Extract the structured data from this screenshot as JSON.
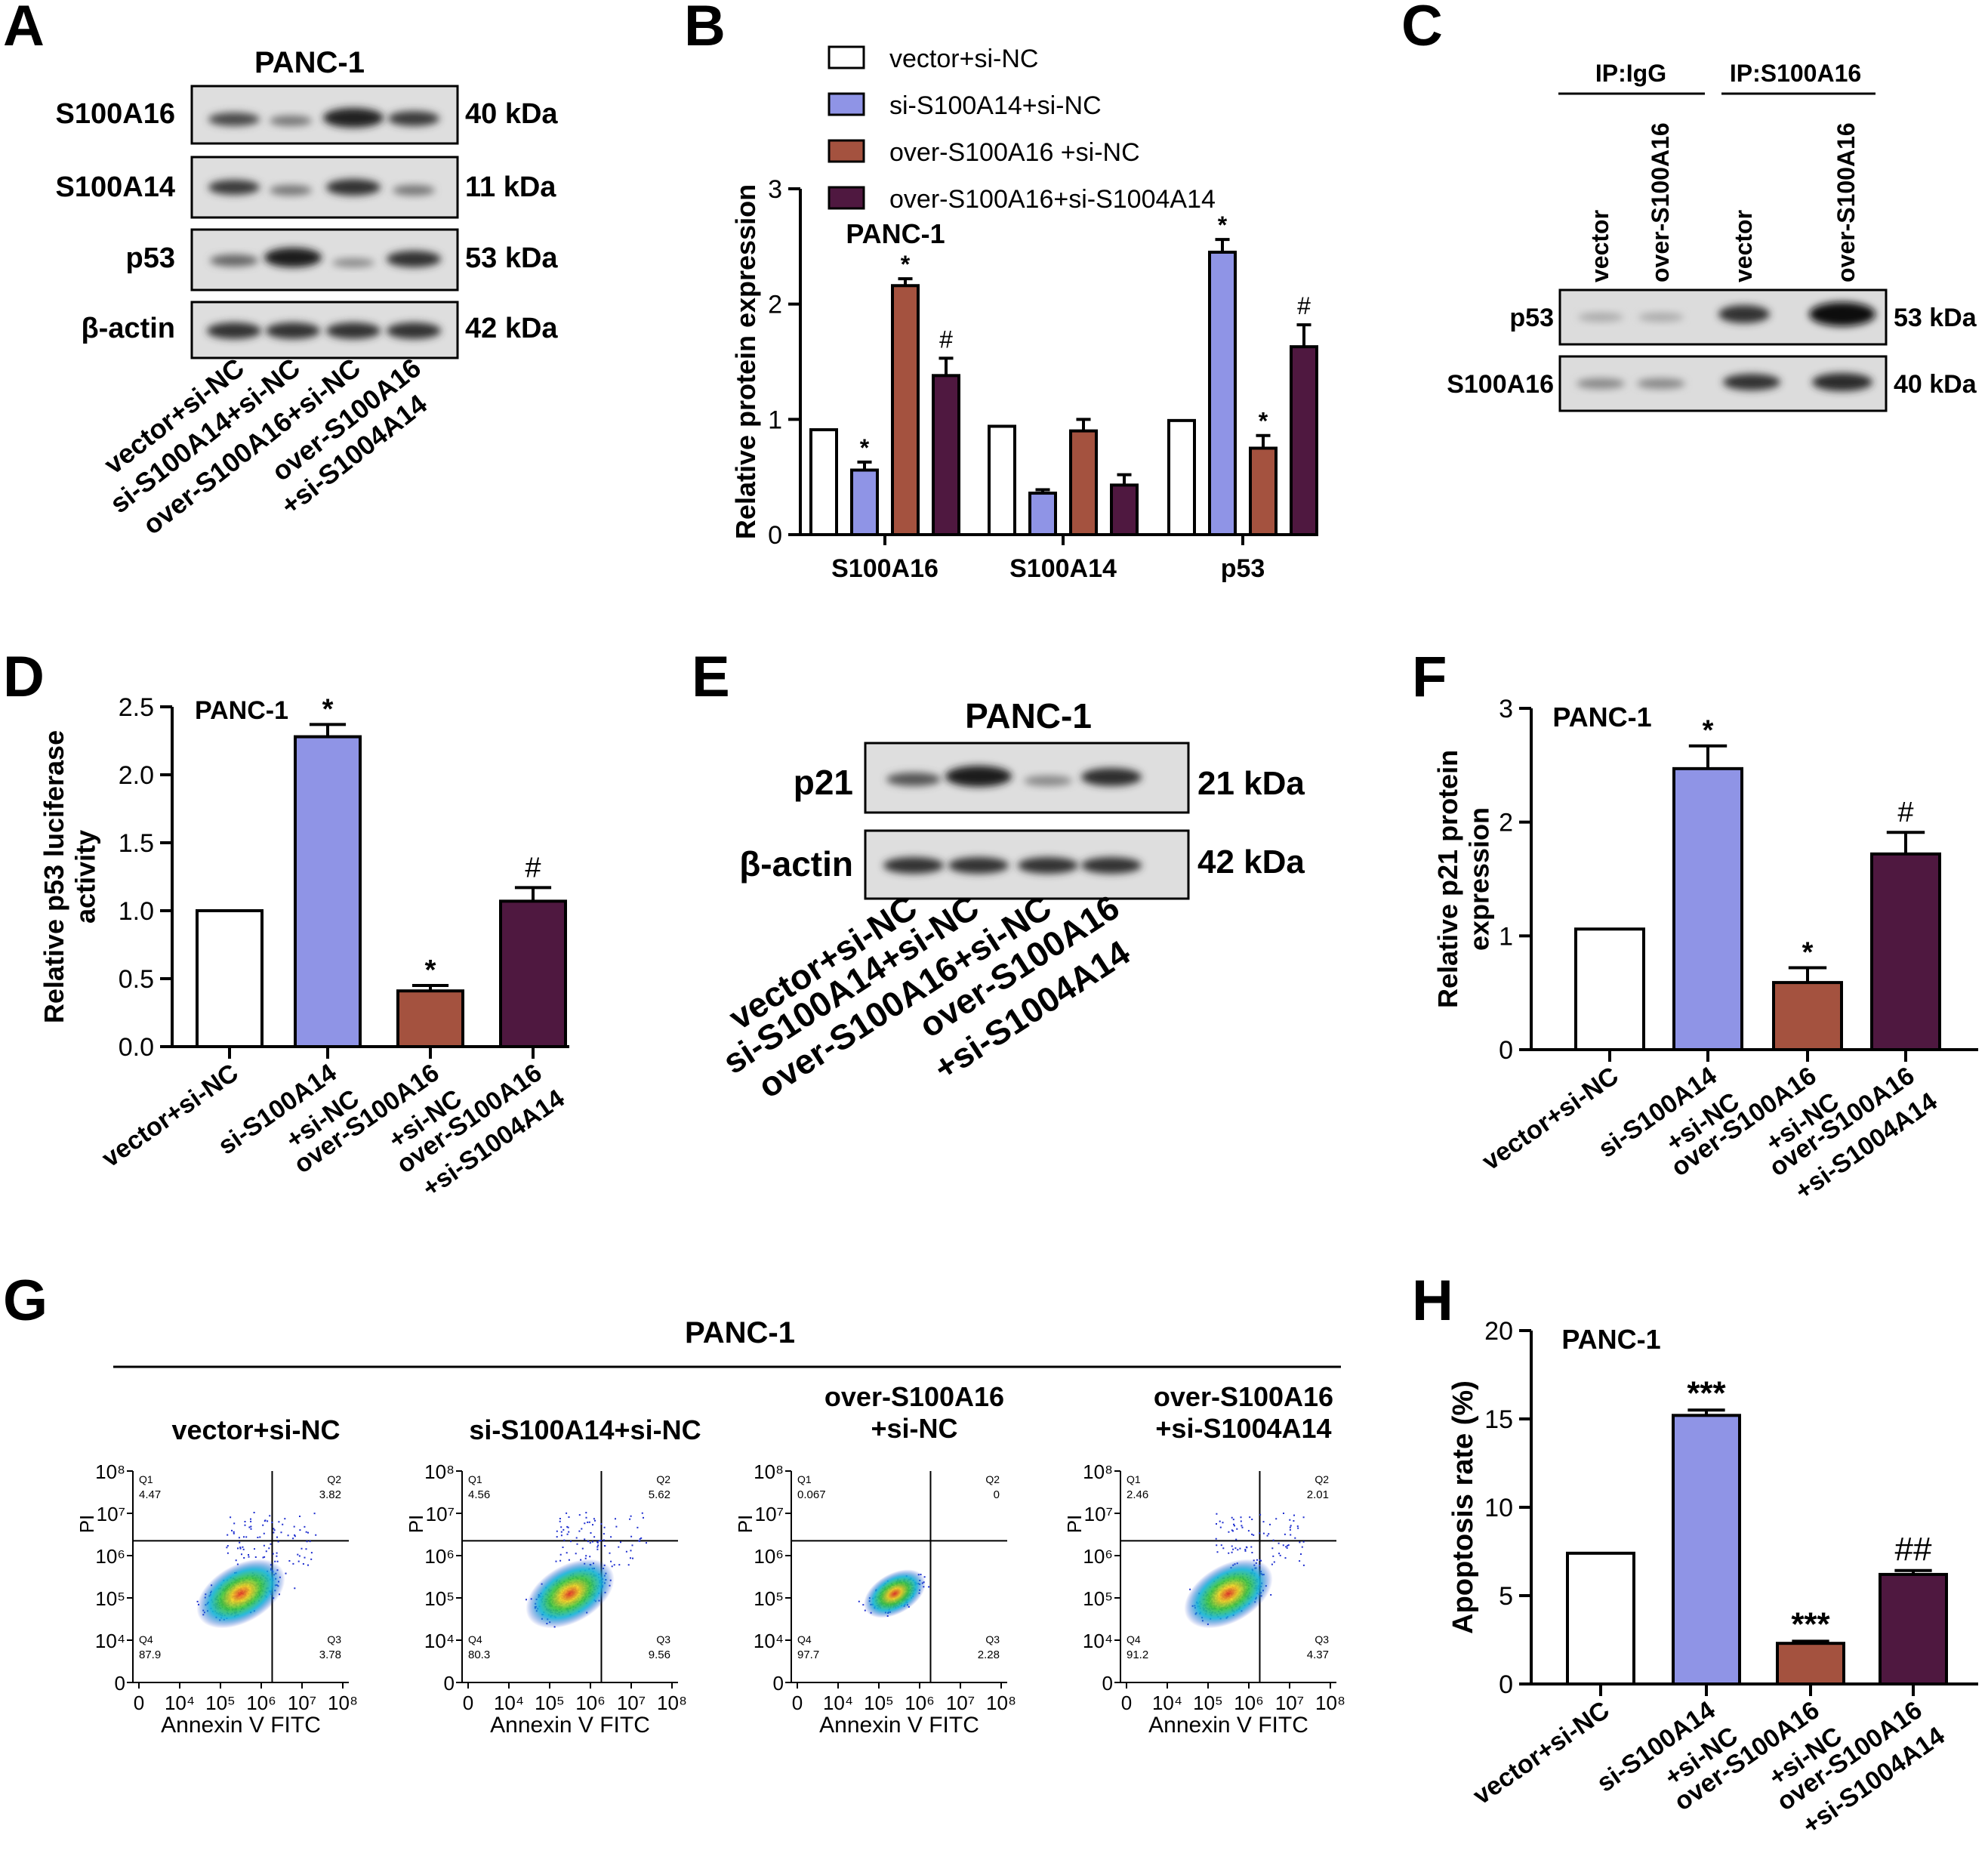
{
  "colors": {
    "vector_si_nc": "#ffffff",
    "si_s100a14": "#8f94e6",
    "over_s100a16": "#a4523f",
    "over_combo": "#4f1840",
    "axis": "#000000"
  },
  "panels": {
    "A": {
      "letter": "A",
      "cell_line": "PANC-1",
      "rows": [
        {
          "name": "S100A16",
          "kda": "40 kDa"
        },
        {
          "name": "S100A14",
          "kda": "11 kDa"
        },
        {
          "name": "p53",
          "kda": "53 kDa"
        },
        {
          "name": "β-actin",
          "kda": "42 kDa"
        }
      ],
      "lanes": [
        "vector+si-NC",
        "si-S100A14+si-NC",
        "over-S100A16+si-NC",
        "over-S100A16",
        "+si-S1004A14"
      ]
    },
    "B": {
      "letter": "B",
      "legend": [
        "vector+si-NC",
        "si-S100A14+si-NC",
        "over-S100A16 +si-NC",
        "over-S100A16+si-S1004A14"
      ]
    },
    "C": {
      "letter": "C",
      "groups": [
        "IP:IgG",
        "IP:S100A16"
      ],
      "lanes": [
        "vector",
        "over-S100A16",
        "vector",
        "over-S100A16"
      ],
      "rows": [
        {
          "name": "p53",
          "kda": "53 kDa"
        },
        {
          "name": "S100A16",
          "kda": "40 kDa"
        }
      ]
    },
    "D": {
      "letter": "D"
    },
    "E": {
      "letter": "E",
      "cell_line": "PANC-1",
      "rows": [
        {
          "name": "p21",
          "kda": "21 kDa"
        },
        {
          "name": "β-actin",
          "kda": "42 kDa"
        }
      ],
      "lanes": [
        "vector+si-NC",
        "si-S100A14+si-NC",
        "over-S100A16+si-NC",
        "over-S100A16",
        "+si-S1004A14"
      ]
    },
    "F": {
      "letter": "F"
    },
    "G": {
      "letter": "G",
      "cell_line": "PANC-1",
      "plots": [
        {
          "title": [
            "vector+si-NC"
          ],
          "q": [
            "Q1",
            "Q2",
            "Q3",
            "Q4"
          ],
          "qv": [
            "4.47",
            "3.82",
            "3.78",
            "87.9"
          ]
        },
        {
          "title": [
            "si-S100A14+si-NC"
          ],
          "q": [
            "Q1",
            "Q2",
            "Q3",
            "Q4"
          ],
          "qv": [
            "4.56",
            "5.62",
            "9.56",
            "80.3"
          ]
        },
        {
          "title": [
            "over-S100A16",
            "+si-NC"
          ],
          "q": [
            "Q1",
            "Q2",
            "Q3",
            "Q4"
          ],
          "qv": [
            "0.067",
            "0",
            "2.28",
            "97.7"
          ]
        },
        {
          "title": [
            "over-S100A16",
            "+si-S1004A14"
          ],
          "q": [
            "Q1",
            "Q2",
            "Q3",
            "Q4"
          ],
          "qv": [
            "2.46",
            "2.01",
            "4.37",
            "91.2"
          ]
        }
      ],
      "ylabel": "PI",
      "xlabel": "Annexin V FITC",
      "y_ticks": [
        "10⁸",
        "10⁷",
        "10⁶",
        "10⁵",
        "10⁴",
        "0"
      ],
      "x_ticks": [
        "0",
        "10⁴",
        "10⁵",
        "10⁶",
        "10⁷",
        "10⁸"
      ]
    },
    "H": {
      "letter": "H"
    }
  },
  "chart_data": [
    {
      "panel": "B",
      "type": "bar",
      "title": "PANC-1",
      "ylabel": "Relative protein expression",
      "xlabel": "",
      "ylim": [
        0,
        3
      ],
      "yticks": [
        "0",
        "1",
        "2",
        "3"
      ],
      "categories": [
        "S100A16",
        "S100A14",
        "p53"
      ],
      "series": [
        {
          "name": "vector+si-NC",
          "values": [
            0.91,
            0.94,
            0.99
          ],
          "errors": [
            0,
            0,
            0
          ],
          "marks": [
            "",
            "",
            ""
          ]
        },
        {
          "name": "si-S100A14+si-NC",
          "values": [
            0.56,
            0.36,
            2.45
          ],
          "errors": [
            0.07,
            0.03,
            0.11
          ],
          "marks": [
            "*",
            "",
            "*"
          ]
        },
        {
          "name": "over-S100A16 +si-NC",
          "values": [
            2.16,
            0.9,
            0.75
          ],
          "errors": [
            0.06,
            0.1,
            0.11
          ],
          "marks": [
            "*",
            "",
            "*"
          ]
        },
        {
          "name": "over-S100A16+si-S1004A14",
          "values": [
            1.38,
            0.43,
            1.63
          ],
          "errors": [
            0.15,
            0.09,
            0.19
          ],
          "marks": [
            "#",
            "",
            "#"
          ]
        }
      ]
    },
    {
      "panel": "D",
      "type": "bar",
      "title": "PANC-1",
      "ylabel": "Relative p53 luciferase activity",
      "ylim": [
        0,
        2.5
      ],
      "yticks": [
        "0.0",
        "0.5",
        "1.0",
        "1.5",
        "2.0",
        "2.5"
      ],
      "categories": [
        [
          "vector+si-NC"
        ],
        [
          "si-S100A14",
          "+si-NC"
        ],
        [
          "over-S100A16",
          "+si-NC"
        ],
        [
          "over-S100A16",
          "+si-S1004A14"
        ]
      ],
      "values": [
        1.0,
        2.28,
        0.41,
        1.07
      ],
      "errors": [
        0,
        0.09,
        0.04,
        0.1
      ],
      "marks": [
        "",
        "*",
        "*",
        "#"
      ]
    },
    {
      "panel": "F",
      "type": "bar",
      "title": "PANC-1",
      "ylabel": "Relative p21 protein expression",
      "ylim": [
        0,
        3
      ],
      "yticks": [
        "0",
        "1",
        "2",
        "3"
      ],
      "categories": [
        [
          "vector+si-NC"
        ],
        [
          "si-S100A14",
          "+si-NC"
        ],
        [
          "over-S100A16",
          "+si-NC"
        ],
        [
          "over-S100A16",
          "+si-S1004A14"
        ]
      ],
      "values": [
        1.06,
        2.47,
        0.59,
        1.72
      ],
      "errors": [
        0,
        0.2,
        0.13,
        0.19
      ],
      "marks": [
        "",
        "*",
        "*",
        "#"
      ]
    },
    {
      "panel": "H",
      "type": "bar",
      "title": "PANC-1",
      "ylabel": "Apoptosis rate (%)",
      "ylim": [
        0,
        20
      ],
      "yticks": [
        "0",
        "5",
        "10",
        "15",
        "20"
      ],
      "categories": [
        [
          "vector+si-NC"
        ],
        [
          "si-S100A14",
          "+si-NC"
        ],
        [
          "over-S100A16",
          "+si-NC"
        ],
        [
          "over-S100A16",
          "+si-S1004A14"
        ]
      ],
      "values": [
        7.4,
        15.2,
        2.3,
        6.2
      ],
      "errors": [
        0,
        0.3,
        0.12,
        0.22
      ],
      "marks": [
        "",
        "***",
        "***",
        "##"
      ]
    }
  ]
}
